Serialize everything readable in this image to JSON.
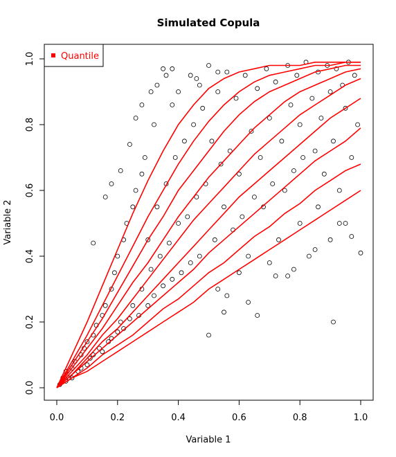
{
  "chart_data": {
    "type": "scatter",
    "title": "Simulated Copula",
    "xlabel": "Variable 1",
    "ylabel": "Variable 2",
    "xlim": [
      0,
      1
    ],
    "ylim": [
      0,
      1
    ],
    "x_ticks": [
      "0.0",
      "0.2",
      "0.4",
      "0.6",
      "0.8",
      "1.0"
    ],
    "y_ticks": [
      "0.0",
      "0.2",
      "0.4",
      "0.6",
      "0.8",
      "1.0"
    ],
    "grid": false,
    "legend": {
      "position": "top-left",
      "entries": [
        {
          "label": "Quantile",
          "color": "#ff0000"
        }
      ]
    },
    "points_color": "#000000",
    "curve_color": "#ff0000",
    "points": [
      [
        0.01,
        0.01
      ],
      [
        0.02,
        0.03
      ],
      [
        0.03,
        0.02
      ],
      [
        0.03,
        0.05
      ],
      [
        0.04,
        0.03
      ],
      [
        0.05,
        0.06
      ],
      [
        0.05,
        0.03
      ],
      [
        0.06,
        0.08
      ],
      [
        0.07,
        0.05
      ],
      [
        0.08,
        0.1
      ],
      [
        0.08,
        0.06
      ],
      [
        0.09,
        0.12
      ],
      [
        0.1,
        0.07
      ],
      [
        0.1,
        0.14
      ],
      [
        0.11,
        0.09
      ],
      [
        0.12,
        0.16
      ],
      [
        0.12,
        0.1
      ],
      [
        0.13,
        0.19
      ],
      [
        0.14,
        0.12
      ],
      [
        0.15,
        0.22
      ],
      [
        0.15,
        0.11
      ],
      [
        0.16,
        0.25
      ],
      [
        0.17,
        0.14
      ],
      [
        0.18,
        0.3
      ],
      [
        0.18,
        0.15
      ],
      [
        0.19,
        0.35
      ],
      [
        0.2,
        0.17
      ],
      [
        0.2,
        0.4
      ],
      [
        0.21,
        0.2
      ],
      [
        0.22,
        0.45
      ],
      [
        0.22,
        0.18
      ],
      [
        0.23,
        0.5
      ],
      [
        0.24,
        0.21
      ],
      [
        0.25,
        0.55
      ],
      [
        0.25,
        0.25
      ],
      [
        0.26,
        0.6
      ],
      [
        0.27,
        0.22
      ],
      [
        0.28,
        0.65
      ],
      [
        0.28,
        0.3
      ],
      [
        0.29,
        0.7
      ],
      [
        0.3,
        0.25
      ],
      [
        0.3,
        0.45
      ],
      [
        0.31,
        0.36
      ],
      [
        0.32,
        0.8
      ],
      [
        0.32,
        0.28
      ],
      [
        0.33,
        0.55
      ],
      [
        0.34,
        0.4
      ],
      [
        0.35,
        0.97
      ],
      [
        0.35,
        0.31
      ],
      [
        0.36,
        0.62
      ],
      [
        0.37,
        0.44
      ],
      [
        0.38,
        0.86
      ],
      [
        0.38,
        0.33
      ],
      [
        0.39,
        0.7
      ],
      [
        0.4,
        0.5
      ],
      [
        0.4,
        0.9
      ],
      [
        0.41,
        0.35
      ],
      [
        0.42,
        0.75
      ],
      [
        0.43,
        0.52
      ],
      [
        0.44,
        0.95
      ],
      [
        0.44,
        0.38
      ],
      [
        0.45,
        0.8
      ],
      [
        0.46,
        0.58
      ],
      [
        0.47,
        0.92
      ],
      [
        0.47,
        0.4
      ],
      [
        0.48,
        0.85
      ],
      [
        0.49,
        0.62
      ],
      [
        0.5,
        0.98
      ],
      [
        0.5,
        0.16
      ],
      [
        0.51,
        0.75
      ],
      [
        0.52,
        0.45
      ],
      [
        0.53,
        0.9
      ],
      [
        0.53,
        0.3
      ],
      [
        0.54,
        0.68
      ],
      [
        0.55,
        0.55
      ],
      [
        0.56,
        0.96
      ],
      [
        0.56,
        0.28
      ],
      [
        0.57,
        0.72
      ],
      [
        0.58,
        0.48
      ],
      [
        0.59,
        0.88
      ],
      [
        0.6,
        0.35
      ],
      [
        0.6,
        0.65
      ],
      [
        0.61,
        0.52
      ],
      [
        0.62,
        0.95
      ],
      [
        0.63,
        0.4
      ],
      [
        0.64,
        0.78
      ],
      [
        0.65,
        0.58
      ],
      [
        0.66,
        0.91
      ],
      [
        0.66,
        0.22
      ],
      [
        0.67,
        0.7
      ],
      [
        0.68,
        0.55
      ],
      [
        0.69,
        0.97
      ],
      [
        0.7,
        0.38
      ],
      [
        0.7,
        0.82
      ],
      [
        0.71,
        0.62
      ],
      [
        0.72,
        0.93
      ],
      [
        0.73,
        0.45
      ],
      [
        0.74,
        0.75
      ],
      [
        0.75,
        0.6
      ],
      [
        0.76,
        0.98
      ],
      [
        0.76,
        0.34
      ],
      [
        0.77,
        0.86
      ],
      [
        0.78,
        0.66
      ],
      [
        0.79,
        0.95
      ],
      [
        0.8,
        0.5
      ],
      [
        0.8,
        0.8
      ],
      [
        0.81,
        0.7
      ],
      [
        0.82,
        0.99
      ],
      [
        0.83,
        0.4
      ],
      [
        0.84,
        0.88
      ],
      [
        0.85,
        0.72
      ],
      [
        0.86,
        0.96
      ],
      [
        0.86,
        0.55
      ],
      [
        0.87,
        0.82
      ],
      [
        0.88,
        0.65
      ],
      [
        0.89,
        0.98
      ],
      [
        0.9,
        0.45
      ],
      [
        0.9,
        0.9
      ],
      [
        0.91,
        0.2
      ],
      [
        0.91,
        0.75
      ],
      [
        0.92,
        0.97
      ],
      [
        0.93,
        0.6
      ],
      [
        0.94,
        0.92
      ],
      [
        0.95,
        0.5
      ],
      [
        0.95,
        0.85
      ],
      [
        0.96,
        0.99
      ],
      [
        0.97,
        0.7
      ],
      [
        0.98,
        0.95
      ],
      [
        0.99,
        0.8
      ],
      [
        1.0,
        0.41
      ],
      [
        0.18,
        0.62
      ],
      [
        0.24,
        0.74
      ],
      [
        0.28,
        0.86
      ],
      [
        0.33,
        0.92
      ],
      [
        0.38,
        0.97
      ],
      [
        0.46,
        0.94
      ],
      [
        0.53,
        0.96
      ],
      [
        0.12,
        0.44
      ],
      [
        0.16,
        0.58
      ],
      [
        0.21,
        0.66
      ],
      [
        0.26,
        0.82
      ],
      [
        0.31,
        0.9
      ],
      [
        0.36,
        0.95
      ],
      [
        0.55,
        0.23
      ],
      [
        0.63,
        0.26
      ],
      [
        0.72,
        0.34
      ],
      [
        0.78,
        0.36
      ],
      [
        0.85,
        0.42
      ],
      [
        0.93,
        0.5
      ],
      [
        0.97,
        0.46
      ]
    ],
    "quantile_curves": {
      "x": [
        0.0,
        0.05,
        0.1,
        0.15,
        0.2,
        0.25,
        0.3,
        0.35,
        0.4,
        0.45,
        0.5,
        0.55,
        0.6,
        0.65,
        0.7,
        0.75,
        0.8,
        0.85,
        0.9,
        0.95,
        1.0
      ],
      "series": [
        {
          "values": [
            0.0,
            0.1,
            0.2,
            0.31,
            0.42,
            0.53,
            0.63,
            0.72,
            0.8,
            0.86,
            0.91,
            0.94,
            0.96,
            0.97,
            0.98,
            0.98,
            0.98,
            0.99,
            0.99,
            0.99,
            0.99
          ]
        },
        {
          "values": [
            0.0,
            0.08,
            0.16,
            0.25,
            0.34,
            0.43,
            0.52,
            0.6,
            0.68,
            0.75,
            0.81,
            0.86,
            0.9,
            0.93,
            0.95,
            0.96,
            0.97,
            0.98,
            0.98,
            0.99,
            0.99
          ]
        },
        {
          "values": [
            0.0,
            0.07,
            0.14,
            0.21,
            0.29,
            0.37,
            0.45,
            0.52,
            0.6,
            0.66,
            0.72,
            0.78,
            0.83,
            0.87,
            0.9,
            0.92,
            0.94,
            0.96,
            0.97,
            0.98,
            0.98
          ]
        },
        {
          "values": [
            0.0,
            0.06,
            0.12,
            0.18,
            0.25,
            0.32,
            0.38,
            0.45,
            0.52,
            0.58,
            0.64,
            0.69,
            0.74,
            0.79,
            0.83,
            0.87,
            0.9,
            0.92,
            0.94,
            0.96,
            0.97
          ]
        },
        {
          "values": [
            0.0,
            0.05,
            0.1,
            0.16,
            0.21,
            0.27,
            0.33,
            0.39,
            0.45,
            0.51,
            0.56,
            0.61,
            0.66,
            0.71,
            0.75,
            0.79,
            0.83,
            0.86,
            0.89,
            0.92,
            0.94
          ]
        },
        {
          "values": [
            0.0,
            0.04,
            0.09,
            0.14,
            0.18,
            0.23,
            0.28,
            0.33,
            0.38,
            0.43,
            0.48,
            0.53,
            0.58,
            0.62,
            0.66,
            0.7,
            0.74,
            0.78,
            0.82,
            0.85,
            0.88
          ]
        },
        {
          "values": [
            0.0,
            0.04,
            0.08,
            0.12,
            0.16,
            0.2,
            0.24,
            0.28,
            0.32,
            0.36,
            0.41,
            0.45,
            0.49,
            0.53,
            0.57,
            0.61,
            0.65,
            0.69,
            0.72,
            0.75,
            0.79
          ]
        },
        {
          "values": [
            0.0,
            0.03,
            0.06,
            0.1,
            0.13,
            0.16,
            0.2,
            0.24,
            0.27,
            0.31,
            0.35,
            0.38,
            0.42,
            0.46,
            0.49,
            0.53,
            0.56,
            0.6,
            0.63,
            0.66,
            0.68
          ]
        },
        {
          "values": [
            0.0,
            0.03,
            0.05,
            0.08,
            0.11,
            0.14,
            0.17,
            0.2,
            0.23,
            0.26,
            0.3,
            0.33,
            0.36,
            0.39,
            0.42,
            0.45,
            0.48,
            0.51,
            0.54,
            0.57,
            0.6
          ]
        }
      ]
    }
  }
}
